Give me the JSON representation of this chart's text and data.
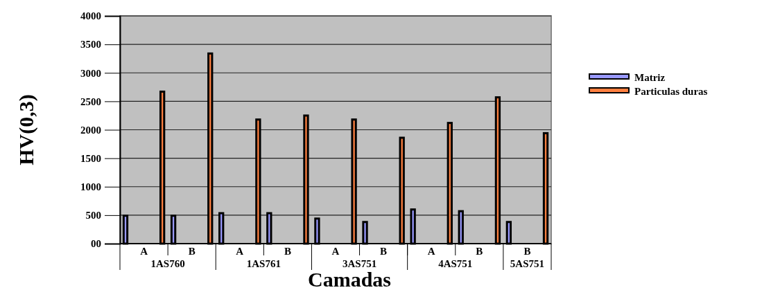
{
  "chart_data": {
    "type": "bar",
    "xlabel": "Camadas",
    "ylabel": "HV(0,3)",
    "categories": [
      "A",
      "B",
      "A",
      "B",
      "A",
      "B",
      "A",
      "B",
      "B"
    ],
    "series": [
      {
        "name": "Matriz",
        "color": "#9999ff",
        "values": [
          490,
          490,
          535,
          535,
          440,
          380,
          600,
          570,
          380
        ]
      },
      {
        "name": "Particulas duras",
        "color": "#ff8040",
        "values": [
          2670,
          3340,
          2180,
          2250,
          2180,
          1860,
          2120,
          2570,
          1940
        ]
      }
    ],
    "ylim": [
      0,
      4000
    ],
    "yticks": [
      {
        "value": 0,
        "label": "00"
      },
      500,
      1000,
      1500,
      2000,
      2500,
      3000,
      3500,
      4000
    ],
    "grid": "y",
    "legend": "right",
    "annotations": [
      "1AS760",
      "1AS761",
      "3AS751",
      "4AS751",
      "5AS751"
    ]
  }
}
